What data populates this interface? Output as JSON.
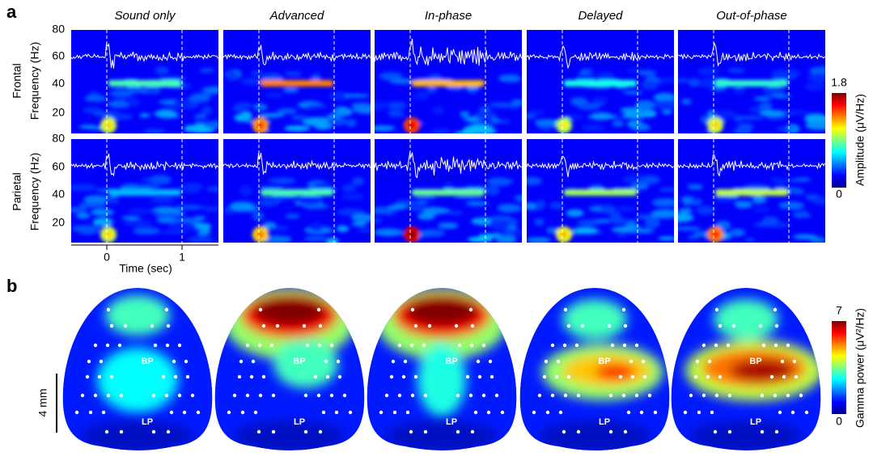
{
  "panel_a": {
    "label": "a",
    "conditions": [
      "Sound only",
      "Advanced",
      "In-phase",
      "Delayed",
      "Out-of-phase"
    ],
    "rows": [
      "Frontal",
      "Parietal"
    ],
    "y_axis_label": "Frequency (Hz)",
    "y_ticks": [
      "80",
      "60",
      "40",
      "20"
    ],
    "x_ticks": [
      "0",
      "1"
    ],
    "x_axis_label": "Time (sec)",
    "colorbar": {
      "max": "1.8",
      "min": "0",
      "label": "Amplitude (μV/Hz)"
    }
  },
  "panel_b": {
    "label": "b",
    "electrode_labels": [
      "BP",
      "LP"
    ],
    "scale_bar": "4 mm",
    "colorbar": {
      "max": "7",
      "min": "0",
      "label": "Gamma power (μV²/Hz)"
    }
  }
}
